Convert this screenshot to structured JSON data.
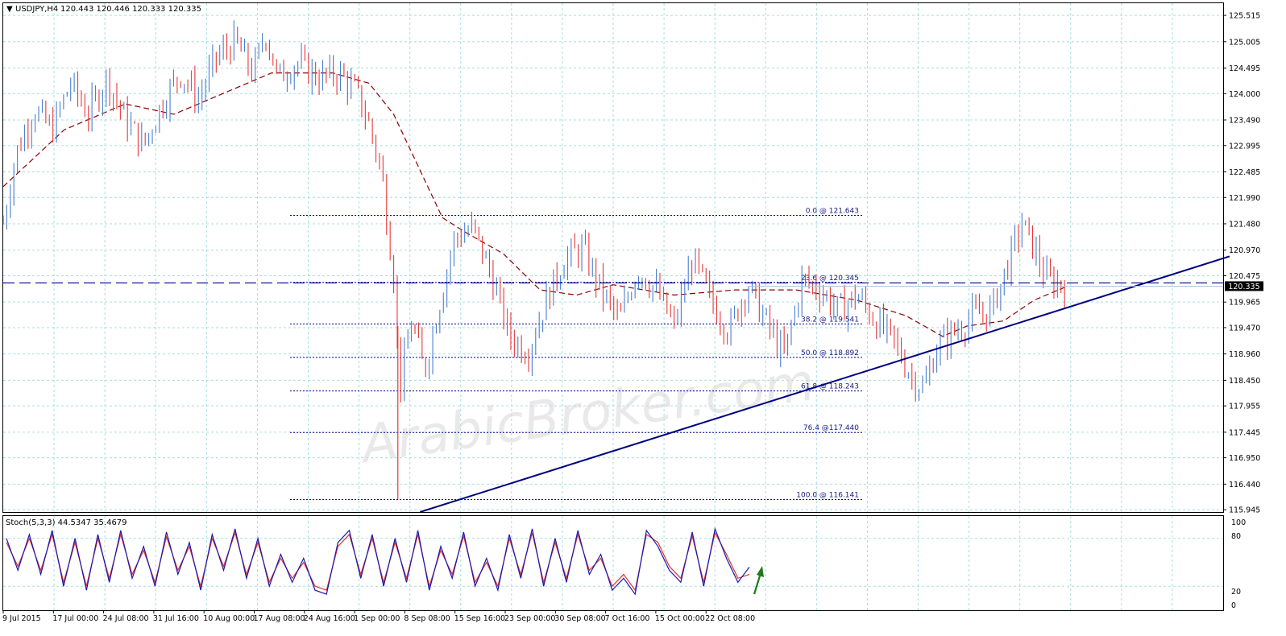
{
  "header": {
    "symbol": "USDJPY,H4",
    "ohlc": "120.443 120.446 120.333 120.335"
  },
  "indicator": {
    "label": "Stoch(5,3,3) 44.5347 35.4679",
    "scale": [
      "100",
      "80",
      "20",
      "0"
    ]
  },
  "current_price_label": "120.335",
  "watermark": "ArabicBroker.com",
  "colors": {
    "background": "#ffffff",
    "grid": "#a8dede",
    "bear": "#e8383a",
    "bull": "#4a7fd0",
    "ma": "#8b0000",
    "trendline": "#000080",
    "fib_line": "#00008b",
    "stoch_main": "#1a1ab0",
    "stoch_signal": "#e03030",
    "arrow": "#1e7a1e"
  },
  "chart_data": [
    {
      "type": "candlestick",
      "symbol": "USDJPY",
      "timeframe": "H4",
      "x_tick_labels": [
        "9 Jul 2015",
        "17 Jul 00:00",
        "24 Jul 08:00",
        "31 Jul 16:00",
        "10 Aug 00:00",
        "17 Aug 08:00",
        "24 Aug 16:00",
        "1 Sep 00:00",
        "8 Sep 08:00",
        "15 Sep 16:00",
        "23 Sep 00:00",
        "30 Sep 08:00",
        "7 Oct 16:00",
        "15 Oct 00:00",
        "22 Oct 08:00"
      ],
      "y_tick_labels": [
        "125.515",
        "125.005",
        "124.495",
        "124.000",
        "123.490",
        "122.995",
        "122.485",
        "121.990",
        "121.480",
        "120.970",
        "120.475",
        "119.965",
        "119.470",
        "118.960",
        "118.450",
        "117.955",
        "117.445",
        "116.950",
        "116.440",
        "115.945"
      ],
      "ylim": [
        115.9,
        125.75
      ],
      "price_path": [
        {
          "t": 0,
          "p": 121.5
        },
        {
          "t": 0.01,
          "p": 122.8
        },
        {
          "t": 0.025,
          "p": 123.7
        },
        {
          "t": 0.04,
          "p": 123.3
        },
        {
          "t": 0.055,
          "p": 124.2
        },
        {
          "t": 0.07,
          "p": 123.6
        },
        {
          "t": 0.085,
          "p": 124.3
        },
        {
          "t": 0.1,
          "p": 123.5
        },
        {
          "t": 0.115,
          "p": 123.0
        },
        {
          "t": 0.13,
          "p": 123.8
        },
        {
          "t": 0.145,
          "p": 124.4
        },
        {
          "t": 0.16,
          "p": 123.9
        },
        {
          "t": 0.175,
          "p": 124.7
        },
        {
          "t": 0.19,
          "p": 125.0
        },
        {
          "t": 0.205,
          "p": 124.4
        },
        {
          "t": 0.215,
          "p": 125.2
        },
        {
          "t": 0.225,
          "p": 124.3
        },
        {
          "t": 0.24,
          "p": 124.6
        },
        {
          "t": 0.26,
          "p": 124.3
        },
        {
          "t": 0.275,
          "p": 124.4
        },
        {
          "t": 0.29,
          "p": 124.0
        },
        {
          "t": 0.3,
          "p": 123.4
        },
        {
          "t": 0.31,
          "p": 122.5
        },
        {
          "t": 0.32,
          "p": 120.5
        },
        {
          "t": 0.325,
          "p": 118.3
        },
        {
          "t": 0.335,
          "p": 119.6
        },
        {
          "t": 0.345,
          "p": 118.6
        },
        {
          "t": 0.36,
          "p": 120.2
        },
        {
          "t": 0.37,
          "p": 121.2
        },
        {
          "t": 0.385,
          "p": 121.4
        },
        {
          "t": 0.4,
          "p": 120.5
        },
        {
          "t": 0.415,
          "p": 119.3
        },
        {
          "t": 0.43,
          "p": 119.0
        },
        {
          "t": 0.445,
          "p": 120.0
        },
        {
          "t": 0.46,
          "p": 120.8
        },
        {
          "t": 0.475,
          "p": 121.0
        },
        {
          "t": 0.49,
          "p": 120.2
        },
        {
          "t": 0.505,
          "p": 119.6
        },
        {
          "t": 0.52,
          "p": 120.6
        },
        {
          "t": 0.535,
          "p": 120.2
        },
        {
          "t": 0.55,
          "p": 119.5
        },
        {
          "t": 0.565,
          "p": 120.8
        },
        {
          "t": 0.58,
          "p": 120.0
        },
        {
          "t": 0.595,
          "p": 119.4
        },
        {
          "t": 0.61,
          "p": 120.3
        },
        {
          "t": 0.625,
          "p": 119.6
        },
        {
          "t": 0.64,
          "p": 118.9
        },
        {
          "t": 0.655,
          "p": 120.4
        },
        {
          "t": 0.67,
          "p": 120.2
        },
        {
          "t": 0.685,
          "p": 119.8
        },
        {
          "t": 0.7,
          "p": 120.1
        },
        {
          "t": 0.715,
          "p": 119.6
        },
        {
          "t": 0.73,
          "p": 119.2
        },
        {
          "t": 0.745,
          "p": 118.5
        },
        {
          "t": 0.755,
          "p": 118.3
        },
        {
          "t": 0.765,
          "p": 119.1
        },
        {
          "t": 0.78,
          "p": 119.4
        },
        {
          "t": 0.795,
          "p": 119.7
        },
        {
          "t": 0.81,
          "p": 119.8
        },
        {
          "t": 0.825,
          "p": 120.8
        },
        {
          "t": 0.835,
          "p": 121.5
        },
        {
          "t": 0.845,
          "p": 121.0
        },
        {
          "t": 0.855,
          "p": 120.4
        },
        {
          "t": 0.87,
          "p": 120.3
        }
      ],
      "moving_average_path": [
        {
          "t": 0,
          "p": 122.2
        },
        {
          "t": 0.05,
          "p": 123.3
        },
        {
          "t": 0.1,
          "p": 123.8
        },
        {
          "t": 0.14,
          "p": 123.6
        },
        {
          "t": 0.18,
          "p": 124.0
        },
        {
          "t": 0.22,
          "p": 124.4
        },
        {
          "t": 0.27,
          "p": 124.4
        },
        {
          "t": 0.3,
          "p": 124.2
        },
        {
          "t": 0.32,
          "p": 123.6
        },
        {
          "t": 0.34,
          "p": 122.6
        },
        {
          "t": 0.36,
          "p": 121.6
        },
        {
          "t": 0.38,
          "p": 121.3
        },
        {
          "t": 0.41,
          "p": 120.9
        },
        {
          "t": 0.44,
          "p": 120.2
        },
        {
          "t": 0.47,
          "p": 120.1
        },
        {
          "t": 0.5,
          "p": 120.3
        },
        {
          "t": 0.55,
          "p": 120.1
        },
        {
          "t": 0.6,
          "p": 120.2
        },
        {
          "t": 0.65,
          "p": 120.2
        },
        {
          "t": 0.7,
          "p": 120.0
        },
        {
          "t": 0.74,
          "p": 119.7
        },
        {
          "t": 0.77,
          "p": 119.3
        },
        {
          "t": 0.79,
          "p": 119.5
        },
        {
          "t": 0.82,
          "p": 119.6
        },
        {
          "t": 0.845,
          "p": 120.0
        },
        {
          "t": 0.87,
          "p": 120.25
        }
      ],
      "fibonacci_levels": [
        {
          "label": "0.0 @ 121.643",
          "price": 121.643
        },
        {
          "label": "23.6 @ 120.345",
          "price": 120.345
        },
        {
          "label": "38.2 @ 119.541",
          "price": 119.541
        },
        {
          "label": "50.0 @ 118.892",
          "price": 118.892
        },
        {
          "label": "61.8 @ 118.243",
          "price": 118.243
        },
        {
          "label": "76.4 @117.440",
          "price": 117.44
        },
        {
          "label": "100.0 @ 116.141",
          "price": 116.141
        }
      ],
      "current_price": 120.335,
      "trendline": [
        {
          "t": 0.31,
          "p": 115.9
        },
        {
          "t": 1.0,
          "p": 120.85
        }
      ],
      "grid": true
    },
    {
      "type": "line",
      "name": "Stoch(5,3,3)",
      "ylim": [
        0,
        100
      ],
      "levels": [
        20,
        80
      ],
      "main_values": [
        80,
        40,
        85,
        35,
        90,
        20,
        80,
        15,
        85,
        25,
        90,
        30,
        70,
        20,
        88,
        35,
        75,
        15,
        85,
        40,
        92,
        30,
        80,
        20,
        60,
        25,
        55,
        15,
        10,
        75,
        90,
        30,
        85,
        20,
        80,
        25,
        90,
        15,
        70,
        30,
        88,
        20,
        55,
        15,
        85,
        30,
        92,
        20,
        80,
        25,
        90,
        35,
        60,
        15,
        30,
        10,
        90,
        70,
        40,
        25,
        88,
        20,
        92,
        55,
        25,
        44
      ],
      "signal_values": [
        75,
        45,
        80,
        40,
        85,
        25,
        75,
        20,
        80,
        30,
        85,
        35,
        65,
        25,
        82,
        40,
        70,
        20,
        80,
        45,
        87,
        35,
        75,
        25,
        55,
        30,
        50,
        20,
        15,
        70,
        85,
        35,
        80,
        25,
        75,
        30,
        85,
        20,
        65,
        35,
        83,
        25,
        50,
        20,
        80,
        35,
        87,
        25,
        75,
        30,
        85,
        40,
        55,
        20,
        35,
        15,
        85,
        75,
        45,
        30,
        83,
        25,
        87,
        60,
        30,
        35
      ]
    }
  ]
}
